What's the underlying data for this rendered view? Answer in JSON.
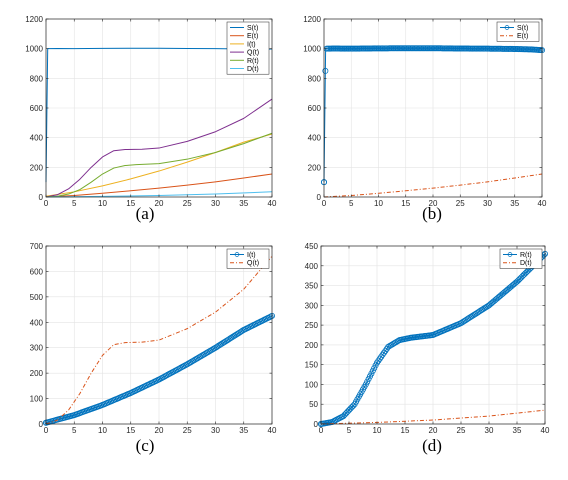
{
  "chart_data": [
    {
      "type": "line",
      "caption": "(a)",
      "xlim": [
        0,
        40
      ],
      "ylim": [
        0,
        1200
      ],
      "xticks": [
        0,
        5,
        10,
        15,
        20,
        25,
        30,
        35,
        40
      ],
      "yticks": [
        0,
        200,
        400,
        600,
        800,
        1000,
        1200
      ],
      "grid": true,
      "legend_position": "top-right",
      "series": [
        {
          "name": "S(t)",
          "color": "#0072BD",
          "style": "solid",
          "x": [
            0,
            0.3,
            2,
            5,
            10,
            15,
            20,
            25,
            30,
            35,
            38,
            40
          ],
          "y": [
            100,
            1000,
            1001,
            1000,
            1002,
            1003,
            1003,
            1001,
            1000,
            998,
            995,
            998
          ]
        },
        {
          "name": "E(t)",
          "color": "#D95319",
          "style": "solid",
          "x": [
            0,
            5,
            10,
            15,
            20,
            25,
            30,
            35,
            40
          ],
          "y": [
            0,
            10,
            25,
            42,
            60,
            80,
            102,
            128,
            155
          ]
        },
        {
          "name": "I(t)",
          "color": "#EDB120",
          "style": "solid",
          "x": [
            0,
            5,
            10,
            15,
            20,
            25,
            30,
            35,
            40
          ],
          "y": [
            5,
            35,
            75,
            122,
            175,
            235,
            300,
            370,
            425
          ]
        },
        {
          "name": "Q(t)",
          "color": "#7E2F8E",
          "style": "solid",
          "x": [
            0,
            2,
            4,
            6,
            8,
            10,
            12,
            14,
            17,
            20,
            25,
            30,
            35,
            40
          ],
          "y": [
            0,
            15,
            55,
            120,
            200,
            270,
            312,
            320,
            322,
            330,
            375,
            440,
            530,
            660
          ]
        },
        {
          "name": "R(t)",
          "color": "#77AC30",
          "style": "solid",
          "x": [
            0,
            2,
            4,
            6,
            8,
            10,
            12,
            14,
            16,
            20,
            25,
            30,
            35,
            40
          ],
          "y": [
            0,
            5,
            20,
            50,
            100,
            155,
            195,
            212,
            218,
            225,
            255,
            300,
            360,
            430
          ]
        },
        {
          "name": "D(t)",
          "color": "#4DBEEE",
          "style": "solid",
          "x": [
            0,
            10,
            20,
            30,
            40
          ],
          "y": [
            0,
            4,
            10,
            20,
            35
          ]
        }
      ]
    },
    {
      "type": "line",
      "caption": "(b)",
      "xlim": [
        0,
        40
      ],
      "ylim": [
        0,
        1200
      ],
      "xticks": [
        0,
        5,
        10,
        15,
        20,
        25,
        30,
        35,
        40
      ],
      "yticks": [
        0,
        200,
        400,
        600,
        800,
        1000,
        1200
      ],
      "grid": true,
      "legend_position": "top-right",
      "series": [
        {
          "name": "S(t)",
          "color": "#0072BD",
          "style": "solid",
          "marker": "o",
          "x": [
            0,
            0.3,
            2,
            5,
            10,
            15,
            20,
            25,
            30,
            35,
            38,
            40
          ],
          "y": [
            100,
            1000,
            1001,
            1000,
            1002,
            1003,
            1003,
            1001,
            1000,
            998,
            995,
            990
          ]
        },
        {
          "name": "E(t)",
          "color": "#D95319",
          "style": "dashdot",
          "x": [
            0,
            5,
            10,
            15,
            20,
            25,
            30,
            35,
            40
          ],
          "y": [
            0,
            10,
            25,
            42,
            60,
            80,
            102,
            128,
            155
          ]
        }
      ]
    },
    {
      "type": "line",
      "caption": "(c)",
      "xlim": [
        0,
        40
      ],
      "ylim": [
        0,
        700
      ],
      "xticks": [
        0,
        5,
        10,
        15,
        20,
        25,
        30,
        35,
        40
      ],
      "yticks": [
        0,
        100,
        200,
        300,
        400,
        500,
        600,
        700
      ],
      "grid": true,
      "legend_position": "top-right",
      "series": [
        {
          "name": "I(t)",
          "color": "#0072BD",
          "style": "solid",
          "marker": "o",
          "x": [
            0,
            5,
            10,
            15,
            20,
            25,
            30,
            35,
            40
          ],
          "y": [
            5,
            35,
            75,
            122,
            175,
            235,
            300,
            370,
            425
          ]
        },
        {
          "name": "Q(t)",
          "color": "#D95319",
          "style": "dashdot",
          "x": [
            0,
            2,
            4,
            6,
            8,
            10,
            12,
            14,
            17,
            20,
            25,
            30,
            35,
            40
          ],
          "y": [
            0,
            15,
            55,
            120,
            200,
            270,
            312,
            320,
            322,
            330,
            375,
            440,
            530,
            660
          ]
        }
      ]
    },
    {
      "type": "line",
      "caption": "(d)",
      "xlim": [
        0,
        40
      ],
      "ylim": [
        0,
        450
      ],
      "xticks": [
        0,
        5,
        10,
        15,
        20,
        25,
        30,
        35,
        40
      ],
      "yticks": [
        0,
        50,
        100,
        150,
        200,
        250,
        300,
        350,
        400,
        450
      ],
      "grid": true,
      "legend_position": "top-right",
      "series": [
        {
          "name": "R(t)",
          "color": "#0072BD",
          "style": "solid",
          "marker": "o",
          "x": [
            0,
            2,
            4,
            6,
            8,
            10,
            12,
            14,
            16,
            20,
            25,
            30,
            35,
            40
          ],
          "y": [
            0,
            5,
            20,
            50,
            100,
            155,
            195,
            212,
            218,
            225,
            255,
            300,
            360,
            430
          ]
        },
        {
          "name": "D(t)",
          "color": "#D95319",
          "style": "dashdot",
          "x": [
            0,
            10,
            20,
            30,
            40
          ],
          "y": [
            0,
            4,
            10,
            20,
            35
          ]
        }
      ]
    }
  ]
}
